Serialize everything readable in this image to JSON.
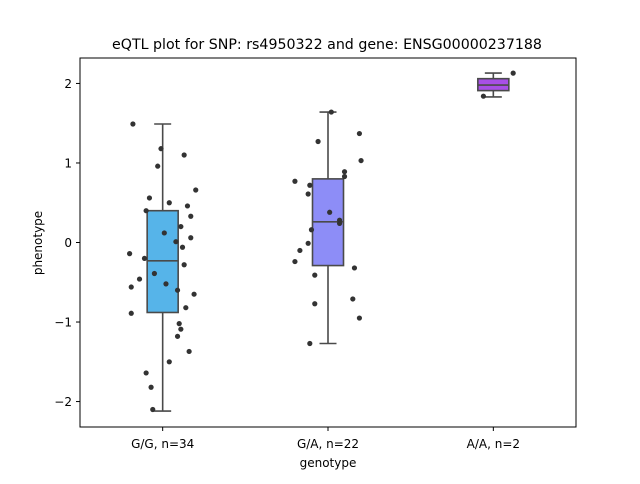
{
  "chart_data": {
    "type": "box",
    "title": "eQTL plot for SNP: rs4950322 and gene: ENSG00000237188",
    "xlabel": "genotype",
    "ylabel": "phenotype",
    "ylim": [
      -2.32,
      2.32
    ],
    "yticks": [
      -2,
      -1,
      0,
      1,
      2
    ],
    "ytick_labels": [
      "−2",
      "−1",
      "0",
      "1",
      "2"
    ],
    "grid": false,
    "categories": [
      "G/G, n=34",
      "G/A, n=22",
      "A/A, n=2"
    ],
    "groups": [
      {
        "label": "G/G, n=34",
        "color": "#56b4e9",
        "whisker_low": -2.12,
        "q1": -0.88,
        "median": -0.23,
        "q3": 0.4,
        "whisker_high": 1.49,
        "points": [
          [
            -0.18,
            1.49
          ],
          [
            -0.01,
            1.18
          ],
          [
            0.13,
            1.1
          ],
          [
            -0.03,
            0.96
          ],
          [
            0.2,
            0.66
          ],
          [
            -0.08,
            0.56
          ],
          [
            0.04,
            0.5
          ],
          [
            0.15,
            0.46
          ],
          [
            -0.1,
            0.4
          ],
          [
            0.17,
            0.33
          ],
          [
            0.11,
            0.2
          ],
          [
            0.01,
            0.12
          ],
          [
            0.17,
            0.06
          ],
          [
            0.08,
            0.01
          ],
          [
            0.12,
            -0.06
          ],
          [
            -0.2,
            -0.14
          ],
          [
            -0.11,
            -0.2
          ],
          [
            0.13,
            -0.28
          ],
          [
            -0.05,
            -0.39
          ],
          [
            -0.14,
            -0.46
          ],
          [
            0.02,
            -0.52
          ],
          [
            -0.19,
            -0.56
          ],
          [
            0.09,
            -0.6
          ],
          [
            0.19,
            -0.65
          ],
          [
            0.14,
            -0.82
          ],
          [
            -0.19,
            -0.89
          ],
          [
            0.1,
            -1.02
          ],
          [
            0.11,
            -1.09
          ],
          [
            0.09,
            -1.18
          ],
          [
            0.16,
            -1.37
          ],
          [
            0.04,
            -1.5
          ],
          [
            -0.1,
            -1.64
          ],
          [
            -0.07,
            -1.82
          ],
          [
            -0.06,
            -2.1
          ]
        ]
      },
      {
        "label": "G/A, n=22",
        "color": "#8d8df7",
        "whisker_low": -1.27,
        "q1": -0.29,
        "median": 0.26,
        "q3": 0.8,
        "whisker_high": 1.64,
        "points": [
          [
            0.02,
            1.64
          ],
          [
            0.19,
            1.37
          ],
          [
            -0.06,
            1.27
          ],
          [
            0.2,
            1.03
          ],
          [
            0.1,
            0.89
          ],
          [
            0.1,
            0.83
          ],
          [
            -0.2,
            0.77
          ],
          [
            -0.11,
            0.72
          ],
          [
            -0.12,
            0.61
          ],
          [
            0.01,
            0.38
          ],
          [
            0.07,
            0.28
          ],
          [
            0.07,
            0.24
          ],
          [
            -0.1,
            0.16
          ],
          [
            -0.12,
            -0.01
          ],
          [
            -0.17,
            -0.1
          ],
          [
            -0.2,
            -0.24
          ],
          [
            0.16,
            -0.32
          ],
          [
            -0.08,
            -0.41
          ],
          [
            0.15,
            -0.71
          ],
          [
            -0.08,
            -0.77
          ],
          [
            0.19,
            -0.95
          ],
          [
            -0.11,
            -1.27
          ]
        ]
      },
      {
        "label": "A/A, n=2",
        "color": "#a84fe7",
        "whisker_low": 1.83,
        "q1": 1.91,
        "median": 1.98,
        "q3": 2.06,
        "whisker_high": 2.13,
        "points": [
          [
            0.12,
            2.13
          ],
          [
            -0.06,
            1.84
          ]
        ]
      }
    ]
  }
}
